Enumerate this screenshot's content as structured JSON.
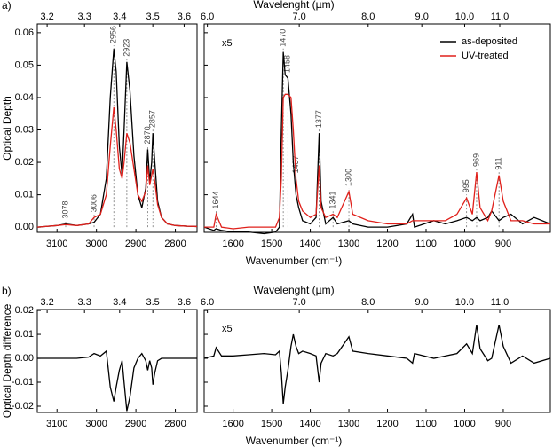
{
  "chart_data": [
    {
      "type": "line",
      "panel_label": "a)",
      "x2label": "Wavelenght (µm)",
      "xlabel": "Wavenumber (cm⁻¹)",
      "ylabel": "Optical Depth",
      "legend": "upper right",
      "subplots": [
        {
          "xlim": [
            3150,
            2745
          ],
          "ylim": [
            -0.0016,
            0.0627
          ],
          "xticks": [
            3100,
            3000,
            2900,
            2800
          ],
          "x2ticks": [
            3.2,
            3.3,
            3.4,
            3.5,
            3.6
          ],
          "yticks": [
            {
              "value": 0,
              "label": "0.00"
            },
            0.01,
            0.02,
            0.03,
            0.04,
            0.05,
            0.06
          ],
          "show_ytick_labels": true,
          "x": [
            3150,
            3100,
            3078,
            3050,
            3020,
            3006,
            2990,
            2975,
            2965,
            2956,
            2950,
            2942,
            2935,
            2930,
            2923,
            2915,
            2905,
            2895,
            2885,
            2875,
            2870,
            2865,
            2860,
            2857,
            2852,
            2845,
            2835,
            2820,
            2800,
            2770,
            2745
          ],
          "series": [
            {
              "color": "#000000",
              "values": [
                0,
                0.0005,
                0.001,
                0.0005,
                0.001,
                0.0015,
                0.004,
                0.015,
                0.04,
                0.055,
                0.048,
                0.025,
                0.016,
                0.03,
                0.051,
                0.042,
                0.022,
                0.01,
                0.006,
                0.012,
                0.024,
                0.014,
                0.02,
                0.029,
                0.02,
                0.008,
                0.003,
                0.001,
                0.0005,
                0.0003,
                0.0002
              ]
            },
            {
              "color": "#e0201b",
              "values": [
                0,
                0.0005,
                0.0008,
                0.0005,
                0.001,
                0.003,
                0.004,
                0.01,
                0.025,
                0.037,
                0.03,
                0.018,
                0.015,
                0.02,
                0.029,
                0.026,
                0.018,
                0.01,
                0.008,
                0.011,
                0.019,
                0.013,
                0.016,
                0.018,
                0.014,
                0.007,
                0.003,
                0.001,
                0.0005,
                0.0003,
                0.0002
              ]
            }
          ],
          "peaks": [
            3078,
            3006,
            2956,
            2923,
            2870,
            2857
          ]
        },
        {
          "xlim": [
            1675,
            778
          ],
          "ylim": [
            -0.0016,
            0.0627
          ],
          "xticks": [
            1600,
            1500,
            1400,
            1300,
            1200,
            1100,
            1000,
            900
          ],
          "x2ticks": [
            {
              "value": 6,
              "label": "6.0"
            },
            {
              "value": 7,
              "label": "7.0"
            },
            {
              "value": 8,
              "label": "8.0"
            },
            {
              "value": 9,
              "label": "9.0"
            },
            {
              "value": 10,
              "label": "10.0"
            },
            {
              "value": 11,
              "label": "11.0"
            }
          ],
          "yticks": [
            0,
            0.01,
            0.02,
            0.03,
            0.04,
            0.05,
            0.06
          ],
          "show_ytick_labels": false,
          "annotation": "x5",
          "x": [
            1675,
            1650,
            1644,
            1630,
            1600,
            1560,
            1520,
            1490,
            1480,
            1475,
            1470,
            1465,
            1458,
            1450,
            1444,
            1437,
            1430,
            1420,
            1400,
            1385,
            1377,
            1372,
            1360,
            1341,
            1330,
            1300,
            1290,
            1250,
            1200,
            1150,
            1135,
            1130,
            1080,
            1050,
            1020,
            995,
            980,
            969,
            960,
            940,
            930,
            911,
            900,
            880,
            850,
            820,
            778
          ],
          "series": [
            {
              "name": "as-deposited",
              "color": "#000000",
              "values": [
                0,
                -0.001,
                -0.0005,
                -0.001,
                -0.0015,
                -0.0015,
                -0.002,
                -0.0015,
                0,
                0.03,
                0.054,
                0.047,
                0.046,
                0.035,
                0.02,
                0.01,
                0.006,
                0.002,
                0.001,
                0.003,
                0.029,
                0.008,
                0.001,
                0.003,
                0.001,
                0.002,
                0.001,
                0,
                0,
                0.001,
                0.004,
                0,
                0.002,
                0.001,
                0.002,
                0.003,
                0.002,
                0.003,
                0.002,
                0.003,
                0.005,
                0.002,
                0.003,
                0.004,
                0.001,
                0.003,
                0.001
              ]
            },
            {
              "name": "UV-treated",
              "color": "#e0201b",
              "values": [
                0,
                0,
                0.004,
                0,
                -0.0005,
                0,
                0,
                0,
                0.003,
                0.015,
                0.04,
                0.041,
                0.041,
                0.04,
                0.03,
                0.015,
                0.008,
                0.005,
                0.003,
                0.004,
                0.019,
                0.006,
                0.003,
                0.004,
                0.003,
                0.011,
                0.004,
                0.002,
                0.001,
                0.001,
                0.002,
                0.002,
                0.002,
                0.002,
                0.004,
                0.009,
                0.004,
                0.017,
                0.006,
                0.002,
                0.005,
                0.016,
                0.008,
                0.002,
                0.002,
                0.001,
                0.001
              ]
            }
          ],
          "peaks": [
            1644,
            1470,
            1458,
            1437,
            1377,
            1341,
            1300,
            995,
            969,
            911
          ]
        }
      ]
    },
    {
      "type": "line",
      "panel_label": "b)",
      "x2label": "Wavelenght (µm)",
      "xlabel": "Wavenumber (cm⁻¹)",
      "ylabel": "Optical Depth difference",
      "subplots": [
        {
          "xlim": [
            3150,
            2745
          ],
          "ylim": [
            -0.0226,
            0.0204
          ],
          "xticks": [
            3100,
            3000,
            2900,
            2800
          ],
          "x2ticks": [
            3.2,
            3.3,
            3.4,
            3.5,
            3.6
          ],
          "yticks": [
            -0.02,
            -0.01,
            {
              "value": 0,
              "label": "0.00"
            },
            0.01,
            0.02
          ],
          "show_ytick_labels": true,
          "x": [
            3150,
            3100,
            3078,
            3050,
            3020,
            3006,
            2990,
            2975,
            2965,
            2956,
            2950,
            2942,
            2935,
            2930,
            2923,
            2915,
            2905,
            2895,
            2885,
            2875,
            2870,
            2865,
            2860,
            2857,
            2852,
            2845,
            2835,
            2820,
            2800,
            2770,
            2745
          ],
          "series": [
            {
              "color": "#000000",
              "values": [
                0,
                0,
                0,
                0,
                0.0005,
                0.002,
                0.001,
                0.003,
                -0.012,
                -0.018,
                -0.012,
                -0.005,
                -0.001,
                -0.01,
                -0.022,
                -0.016,
                -0.004,
                0,
                0.002,
                -0.001,
                -0.005,
                -0.001,
                -0.004,
                -0.011,
                -0.006,
                -0.001,
                0,
                0,
                0,
                0,
                0
              ]
            }
          ]
        },
        {
          "xlim": [
            1675,
            778
          ],
          "ylim": [
            -0.0226,
            0.0204
          ],
          "xticks": [
            1600,
            1500,
            1400,
            1300,
            1200,
            1100,
            1000,
            900
          ],
          "x2ticks": [
            {
              "value": 6,
              "label": "6.0"
            },
            {
              "value": 7,
              "label": "7.0"
            },
            {
              "value": 8,
              "label": "8.0"
            },
            {
              "value": 9,
              "label": "9.0"
            },
            {
              "value": 10,
              "label": "10.0"
            },
            {
              "value": 11,
              "label": "11.0"
            }
          ],
          "yticks": [
            -0.02,
            -0.01,
            0,
            0.01,
            0.02
          ],
          "show_ytick_labels": false,
          "annotation": "x5",
          "x": [
            1675,
            1650,
            1644,
            1630,
            1600,
            1560,
            1520,
            1490,
            1480,
            1475,
            1470,
            1465,
            1458,
            1450,
            1444,
            1437,
            1430,
            1420,
            1400,
            1385,
            1377,
            1372,
            1360,
            1341,
            1330,
            1300,
            1290,
            1250,
            1200,
            1150,
            1135,
            1130,
            1080,
            1050,
            1020,
            995,
            980,
            969,
            960,
            940,
            930,
            911,
            900,
            880,
            850,
            820,
            778
          ],
          "series": [
            {
              "color": "#000000",
              "values": [
                0,
                0.001,
                0.0045,
                0.001,
                0.001,
                0.0015,
                0.002,
                0.0015,
                0.003,
                -0.006,
                -0.019,
                -0.012,
                -0.005,
                0.005,
                0.01,
                0.005,
                0.002,
                0.003,
                0.002,
                0.001,
                -0.01,
                -0.002,
                0.002,
                0.001,
                0.002,
                0.009,
                0.003,
                0.002,
                0.001,
                0,
                -0.002,
                0.002,
                0,
                0.001,
                0.002,
                0.006,
                0.002,
                0.014,
                0.004,
                -0.001,
                0,
                0.014,
                0.005,
                -0.002,
                0.001,
                -0.002,
                0
              ]
            }
          ]
        }
      ]
    }
  ]
}
